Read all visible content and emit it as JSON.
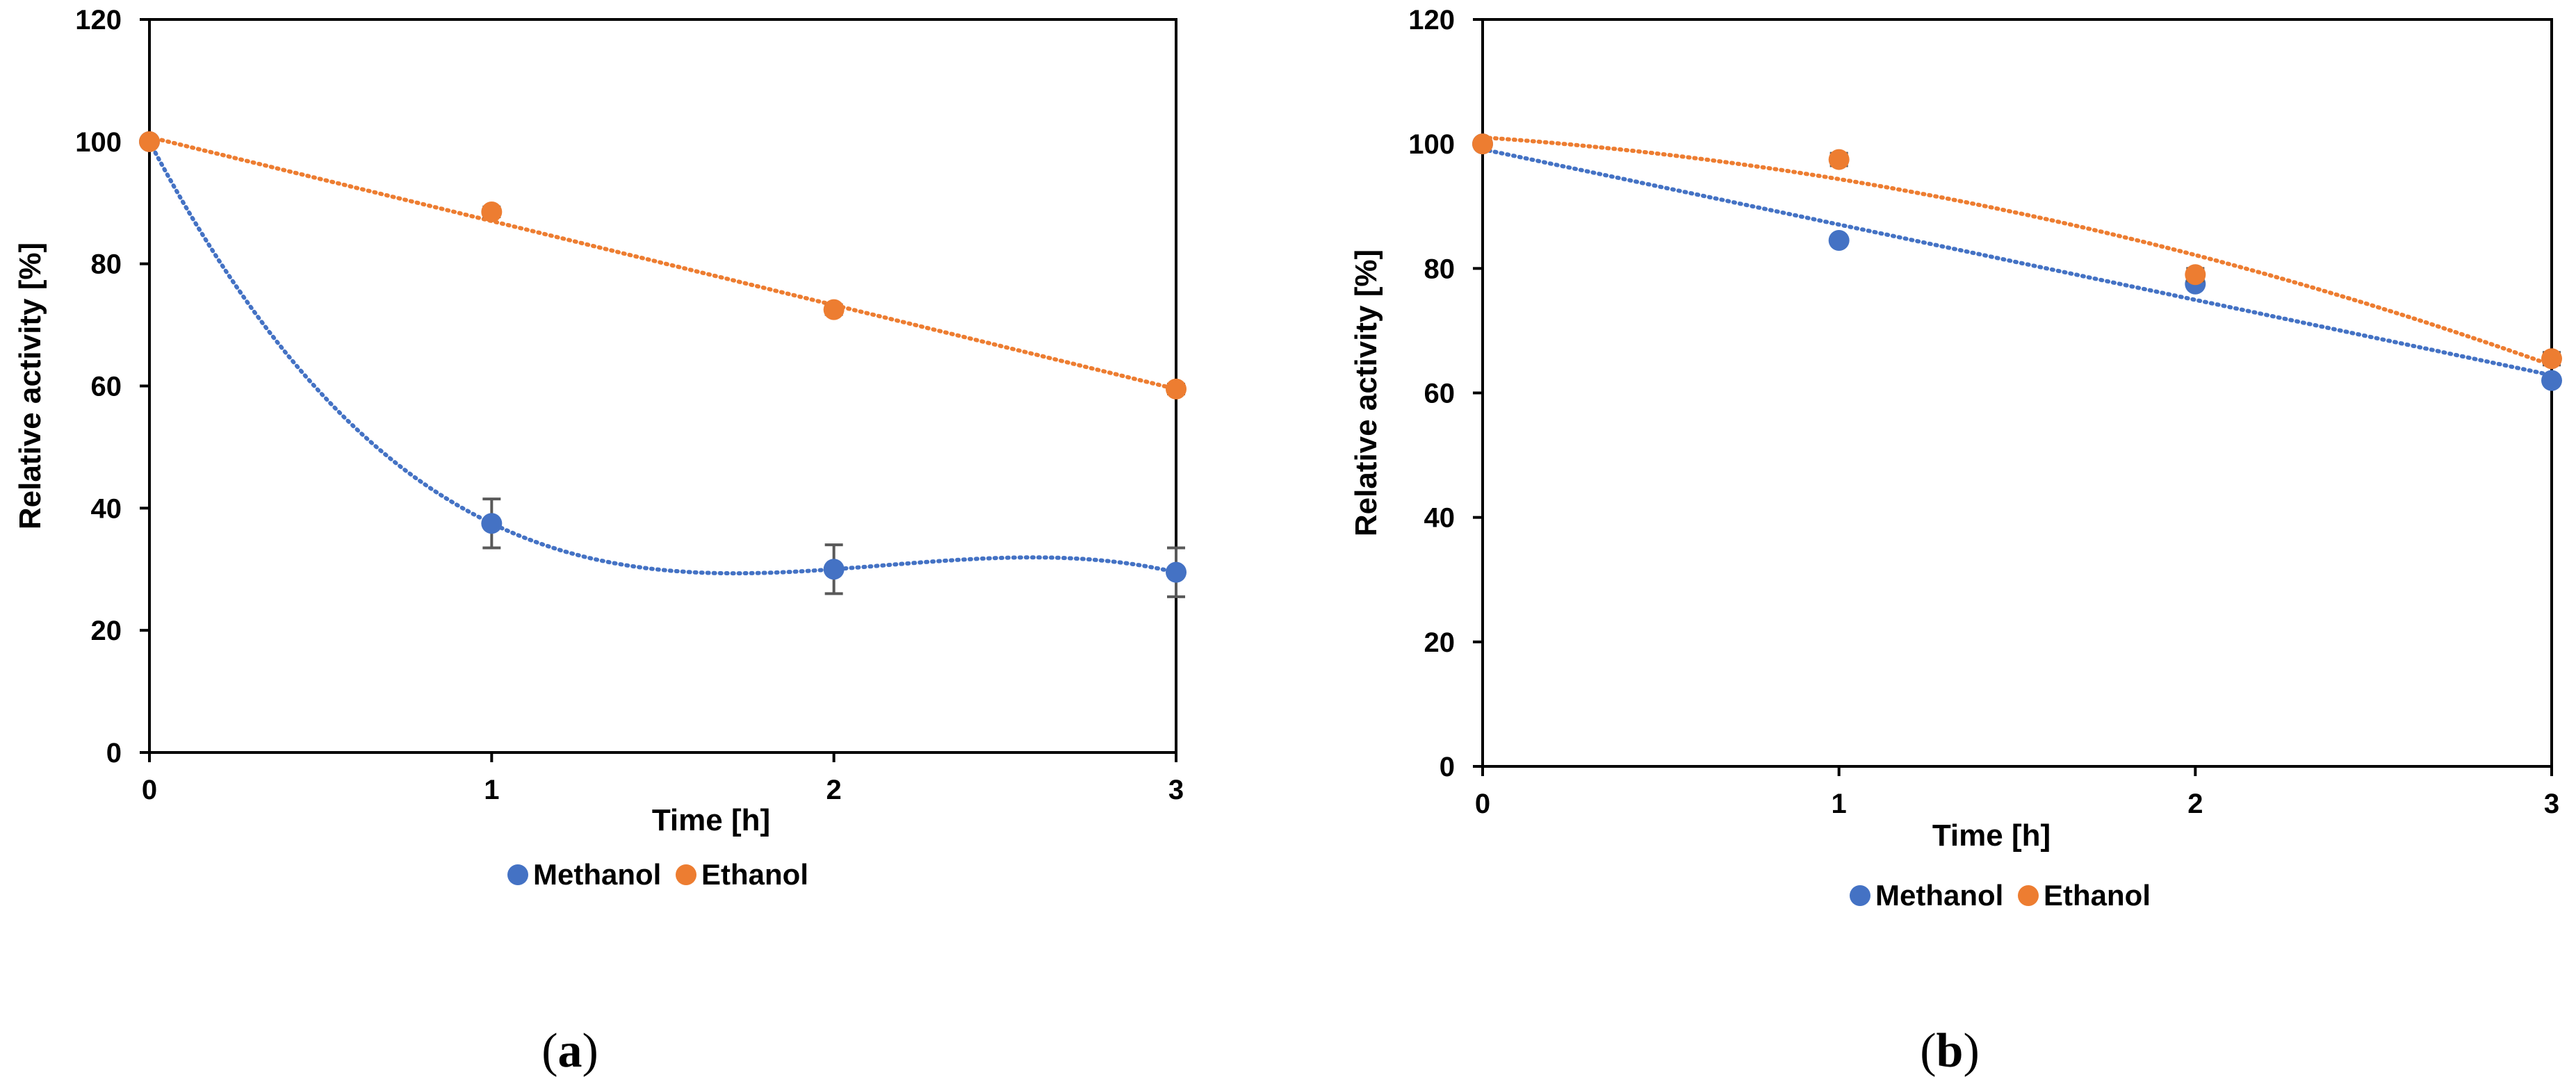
{
  "chart_data": [
    {
      "type": "scatter",
      "panel_label": "a",
      "title": "",
      "xlabel": "Time [h]",
      "ylabel": "Relative activity [%]",
      "xlim": [
        0,
        3
      ],
      "ylim": [
        0,
        120
      ],
      "xticks": [
        0,
        1,
        2,
        3
      ],
      "yticks": [
        0,
        20,
        40,
        60,
        80,
        100,
        120
      ],
      "grid": false,
      "legend_position": "bottom",
      "series": [
        {
          "name": "Methanol",
          "color": "#4472C4",
          "x": [
            0,
            1,
            2,
            3
          ],
          "y": [
            100,
            37.5,
            30,
            29.5
          ],
          "error": [
            0,
            4,
            4,
            4
          ],
          "trendline": "polynomial"
        },
        {
          "name": "Ethanol",
          "color": "#ED7D31",
          "x": [
            0,
            1,
            2,
            3
          ],
          "y": [
            100,
            88.5,
            72.5,
            59.5
          ],
          "error": [
            0,
            0.8,
            0.8,
            0.8
          ],
          "trendline": "linear"
        }
      ]
    },
    {
      "type": "scatter",
      "panel_label": "b",
      "title": "",
      "xlabel": "Time [h]",
      "ylabel": "Relative activity [%]",
      "xlim": [
        0,
        3
      ],
      "ylim": [
        0,
        120
      ],
      "xticks": [
        0,
        1,
        2,
        3
      ],
      "yticks": [
        0,
        20,
        40,
        60,
        80,
        100,
        120
      ],
      "grid": false,
      "legend_position": "bottom",
      "series": [
        {
          "name": "Methanol",
          "color": "#4472C4",
          "x": [
            0,
            1,
            2,
            3
          ],
          "y": [
            100,
            84.5,
            77.5,
            62
          ],
          "error": [
            0,
            0.5,
            0.5,
            0.5
          ],
          "trendline": "linear"
        },
        {
          "name": "Ethanol",
          "color": "#ED7D31",
          "x": [
            0,
            1,
            2,
            3
          ],
          "y": [
            100,
            97.5,
            79,
            65.5
          ],
          "error": [
            0,
            1,
            1,
            1
          ],
          "trendline": "quadratic"
        }
      ]
    }
  ]
}
